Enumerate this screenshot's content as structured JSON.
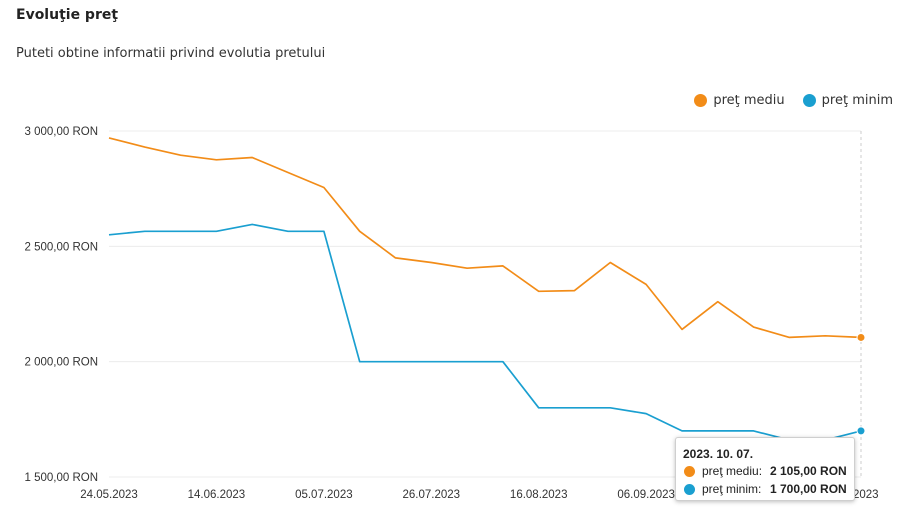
{
  "header": {
    "title": "Evoluţie preţ",
    "subtitle": "Puteti obtine informatii privind evolutia pretului"
  },
  "legend": [
    {
      "label": "preţ mediu",
      "color": "#f28c18"
    },
    {
      "label": "preţ minim",
      "color": "#1a9fd0"
    }
  ],
  "tooltip": {
    "date": "2023. 10. 07.",
    "rows": [
      {
        "label": "preţ mediu:",
        "value": "2 105,00 RON",
        "color": "#f28c18"
      },
      {
        "label": "preţ minim:",
        "value": "1 700,00 RON",
        "color": "#1a9fd0"
      }
    ]
  },
  "chart_data": {
    "type": "line",
    "ylim": [
      1500,
      3000
    ],
    "y_ticks": [
      {
        "value": 3000,
        "label": "3 000,00 RON"
      },
      {
        "value": 2500,
        "label": "2 500,00 RON"
      },
      {
        "value": 2000,
        "label": "2 000,00 RON"
      },
      {
        "value": 1500,
        "label": "1 500,00 RON"
      }
    ],
    "x_ticks": [
      {
        "index": 0,
        "label": "24.05.2023"
      },
      {
        "index": 3,
        "label": "14.06.2023"
      },
      {
        "index": 6,
        "label": "05.07.2023"
      },
      {
        "index": 9,
        "label": "26.07.2023"
      },
      {
        "index": 12,
        "label": "16.08.2023"
      },
      {
        "index": 15,
        "label": "06.09.2023"
      },
      {
        "index": 21,
        "label": "0.2023"
      }
    ],
    "point_count": 22,
    "highlight_index": 21,
    "series": [
      {
        "name": "preţ mediu",
        "color": "#f28c18",
        "values": [
          2970,
          2930,
          2895,
          2875,
          2885,
          2820,
          2755,
          2565,
          2450,
          2430,
          2405,
          2415,
          2305,
          2308,
          2430,
          2335,
          2140,
          2260,
          2150,
          2105,
          2112,
          2105
        ]
      },
      {
        "name": "preţ minim",
        "color": "#1a9fd0",
        "values": [
          2550,
          2565,
          2565,
          2565,
          2595,
          2565,
          2565,
          2000,
          2000,
          2000,
          2000,
          2000,
          1800,
          1800,
          1800,
          1775,
          1700,
          1700,
          1700,
          1660,
          1660,
          1700
        ]
      }
    ]
  }
}
